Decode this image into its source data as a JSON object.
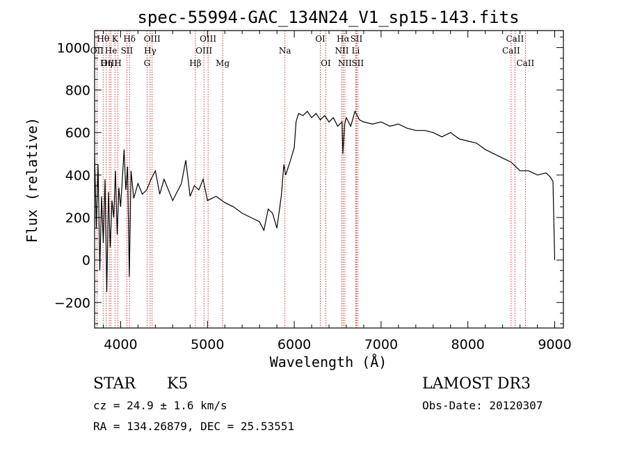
{
  "chart_data": {
    "type": "line",
    "title": "spec-55994-GAC_134N24_V1_sp15-143.fits",
    "xlabel": "Wavelength (Å)",
    "ylabel": "Flux (relative)",
    "xlim": [
      3700,
      9100
    ],
    "ylim": [
      -320,
      1080
    ],
    "xticks": [
      4000,
      5000,
      6000,
      7000,
      8000,
      9000
    ],
    "xtick_labels": [
      "4000",
      "5000",
      "6000",
      "7000",
      "8000",
      "9000"
    ],
    "yticks": [
      -200,
      0,
      200,
      400,
      600,
      800,
      1000
    ],
    "ytick_labels": [
      "−200",
      "0",
      "200",
      "400",
      "600",
      "800",
      "1000"
    ],
    "colors": {
      "spectrum": "#000000",
      "line_marker": "#c00000",
      "axes": "#000000"
    },
    "series": [
      {
        "name": "spectrum",
        "x": [
          3700,
          3720,
          3740,
          3760,
          3780,
          3800,
          3820,
          3840,
          3860,
          3880,
          3900,
          3920,
          3940,
          3960,
          3980,
          4000,
          4020,
          4040,
          4060,
          4080,
          4100,
          4120,
          4150,
          4200,
          4250,
          4300,
          4350,
          4400,
          4450,
          4500,
          4600,
          4700,
          4750,
          4800,
          4850,
          4900,
          4950,
          5000,
          5100,
          5200,
          5300,
          5400,
          5500,
          5600,
          5650,
          5700,
          5750,
          5800,
          5850,
          5880,
          5900,
          5950,
          6000,
          6020,
          6050,
          6100,
          6150,
          6200,
          6250,
          6300,
          6350,
          6400,
          6450,
          6500,
          6550,
          6560,
          6580,
          6600,
          6650,
          6700,
          6750,
          6800,
          6900,
          7000,
          7100,
          7200,
          7300,
          7400,
          7500,
          7600,
          7700,
          7800,
          7900,
          8000,
          8100,
          8200,
          8300,
          8400,
          8500,
          8600,
          8700,
          8800,
          8900,
          8950,
          8980,
          9000
        ],
        "y": [
          500,
          150,
          450,
          -50,
          300,
          80,
          380,
          -150,
          320,
          60,
          280,
          200,
          420,
          120,
          340,
          250,
          380,
          520,
          330,
          440,
          -80,
          420,
          290,
          360,
          310,
          330,
          380,
          420,
          310,
          380,
          280,
          360,
          470,
          300,
          350,
          330,
          380,
          280,
          300,
          270,
          250,
          220,
          200,
          180,
          140,
          240,
          220,
          150,
          300,
          450,
          400,
          460,
          530,
          650,
          690,
          680,
          700,
          670,
          690,
          660,
          680,
          650,
          670,
          630,
          650,
          500,
          640,
          670,
          630,
          700,
          660,
          650,
          640,
          650,
          630,
          640,
          620,
          610,
          610,
          600,
          580,
          600,
          570,
          560,
          550,
          520,
          500,
          480,
          460,
          420,
          420,
          400,
          410,
          390,
          370,
          0
        ]
      }
    ],
    "spectral_lines": [
      {
        "name": "Hθ",
        "wavelength": 3798,
        "row": 0
      },
      {
        "name": "OII",
        "wavelength": 3727,
        "row": 1
      },
      {
        "name": "OIII",
        "wavelength": 3869,
        "row": 2
      },
      {
        "name": "Hη",
        "wavelength": 3835,
        "row": 2
      },
      {
        "name": "K",
        "wavelength": 3934,
        "row": 0
      },
      {
        "name": "He",
        "wavelength": 3889,
        "row": 1
      },
      {
        "name": "H",
        "wavelength": 3968,
        "row": 2
      },
      {
        "name": "SII",
        "wavelength": 4072,
        "row": 1
      },
      {
        "name": "Hδ",
        "wavelength": 4102,
        "row": 0
      },
      {
        "name": "G",
        "wavelength": 4304,
        "row": 2
      },
      {
        "name": "Hγ",
        "wavelength": 4340,
        "row": 1
      },
      {
        "name": "OIII",
        "wavelength": 4363,
        "row": 0
      },
      {
        "name": "Hβ",
        "wavelength": 4861,
        "row": 2
      },
      {
        "name": "OIII",
        "wavelength": 4959,
        "row": 1
      },
      {
        "name": "OIII",
        "wavelength": 5007,
        "row": 0
      },
      {
        "name": "Mg",
        "wavelength": 5175,
        "row": 2
      },
      {
        "name": "Na",
        "wavelength": 5893,
        "row": 1
      },
      {
        "name": "OI",
        "wavelength": 6300,
        "row": 0
      },
      {
        "name": "OI",
        "wavelength": 6363,
        "row": 2
      },
      {
        "name": "NII",
        "wavelength": 6548,
        "row": 1
      },
      {
        "name": "Hα",
        "wavelength": 6563,
        "row": 0
      },
      {
        "name": "NII",
        "wavelength": 6583,
        "row": 2
      },
      {
        "name": "SII",
        "wavelength": 6716,
        "row": 0
      },
      {
        "name": "Li",
        "wavelength": 6708,
        "row": 1
      },
      {
        "name": "SII",
        "wavelength": 6731,
        "row": 2
      },
      {
        "name": "CaII",
        "wavelength": 8498,
        "row": 1
      },
      {
        "name": "CaII",
        "wavelength": 8542,
        "row": 0
      },
      {
        "name": "CaII",
        "wavelength": 8662,
        "row": 2
      }
    ]
  },
  "info": {
    "object_class": "STAR",
    "subclass": "K5",
    "survey": "LAMOST DR3",
    "redshift": "cz = 24.9 ± 1.6 km/s",
    "obs_date": "Obs-Date: 20120307",
    "coords": "RA = 134.26879, DEC =  25.53551"
  }
}
